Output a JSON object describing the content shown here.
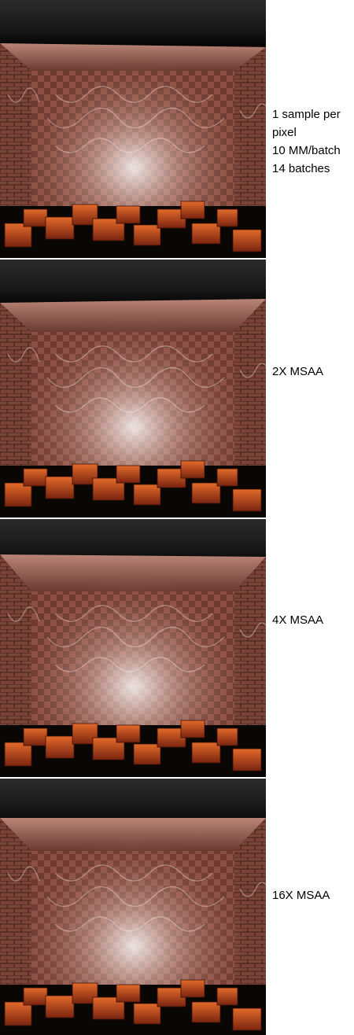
{
  "colors": {
    "background": "#ffffff",
    "caption_text": "#000000",
    "wall_copper": "#8a4a3e",
    "wall_dark": "#2a1814",
    "floor_orange": "#d2561f",
    "caustic_highlight": "#f4e6e0",
    "ceiling_dark": "#151515"
  },
  "panels": [
    {
      "image_description_icon": "caustics-render-image",
      "caption": {
        "line1": "1 sample per",
        "line2": "pixel",
        "line3": "10 MM/batch",
        "line4": "14 batches"
      }
    },
    {
      "image_description_icon": "caustics-render-image",
      "caption": {
        "line1": "2X MSAA"
      }
    },
    {
      "image_description_icon": "caustics-render-image",
      "caption": {
        "line1": "4X MSAA"
      }
    },
    {
      "image_description_icon": "caustics-render-image",
      "caption": {
        "line1": "16X MSAA"
      }
    }
  ]
}
